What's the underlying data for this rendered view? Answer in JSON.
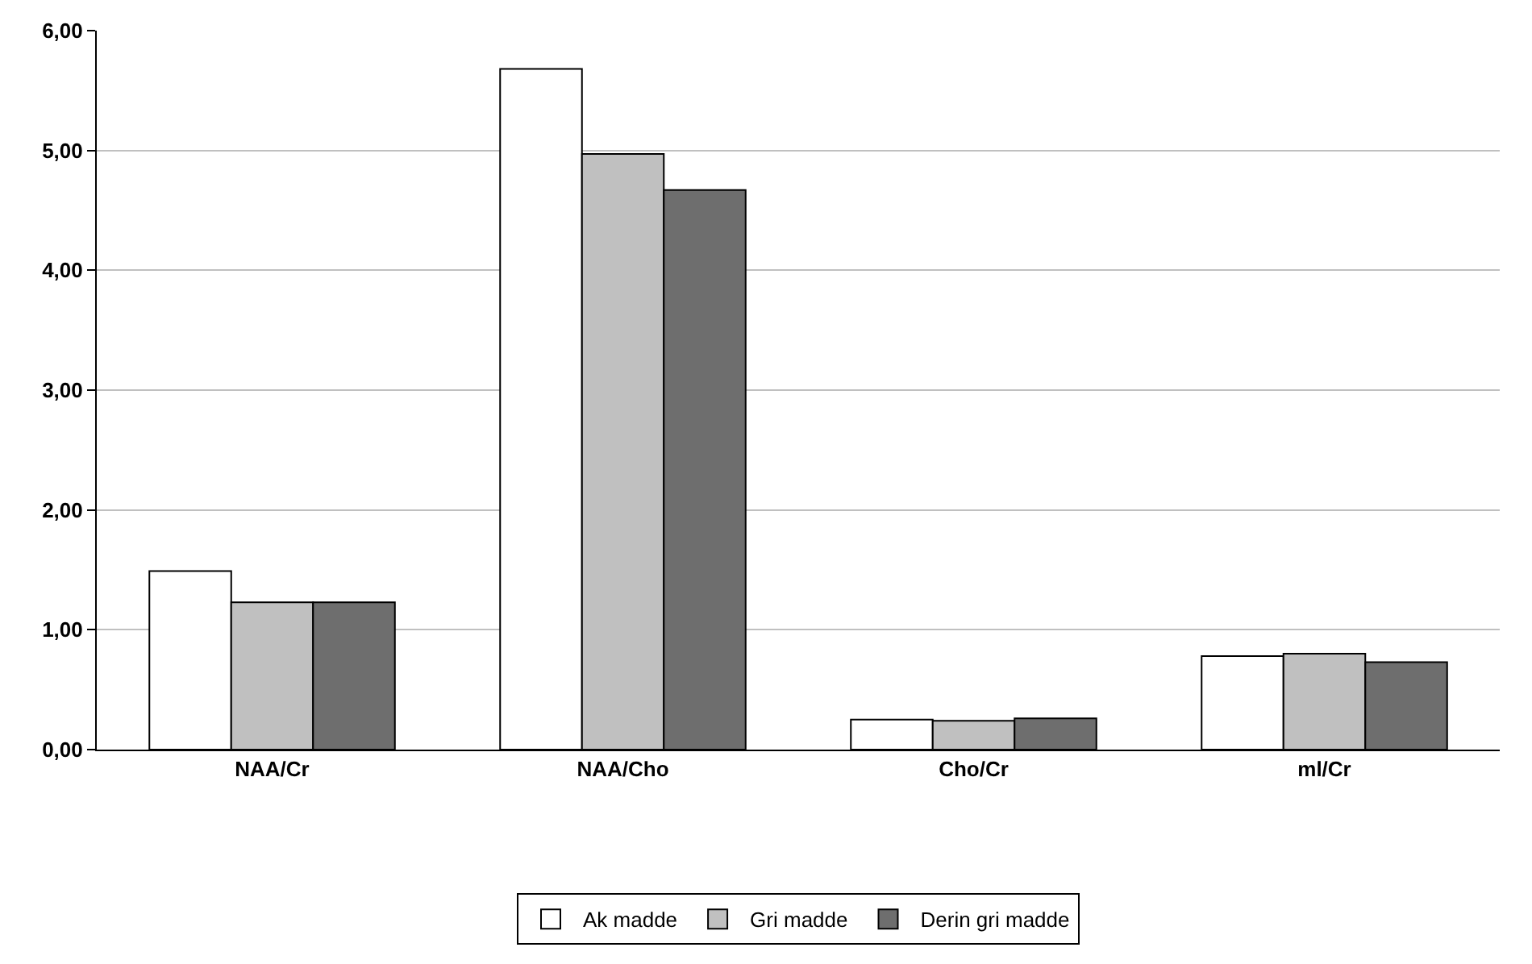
{
  "chart_data": {
    "type": "bar",
    "categories": [
      "NAA/Cr",
      "NAA/Cho",
      "Cho/Cr",
      "ml/Cr"
    ],
    "series": [
      {
        "name": "Ak madde",
        "color": "#ffffff",
        "values": [
          1.49,
          5.68,
          0.25,
          0.78
        ]
      },
      {
        "name": "Gri madde",
        "color": "#c0c0c0",
        "values": [
          1.23,
          4.97,
          0.24,
          0.8
        ]
      },
      {
        "name": "Derin gri madde",
        "color": "#6e6e6e",
        "values": [
          1.23,
          4.67,
          0.26,
          0.73
        ]
      }
    ],
    "ylim": [
      0,
      6
    ],
    "yticks": [
      {
        "value": 0,
        "label": "0,00"
      },
      {
        "value": 1,
        "label": "1,00"
      },
      {
        "value": 2,
        "label": "2,00"
      },
      {
        "value": 3,
        "label": "3,00"
      },
      {
        "value": 4,
        "label": "4,00"
      },
      {
        "value": 5,
        "label": "5,00"
      },
      {
        "value": 6,
        "label": "6,00"
      }
    ],
    "grid": "y",
    "legend": "bottom"
  }
}
